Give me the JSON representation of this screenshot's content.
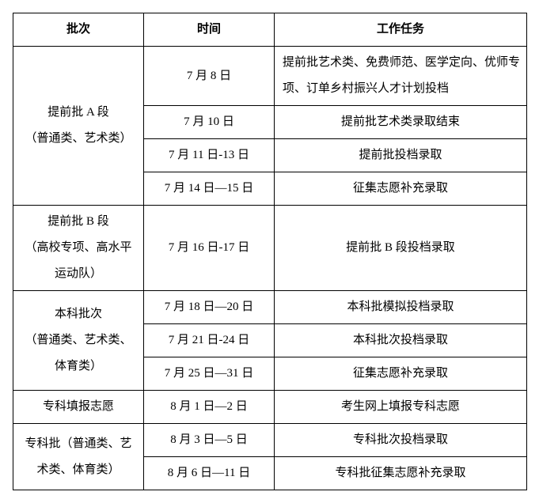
{
  "headers": {
    "batch": "批次",
    "time": "时间",
    "task": "工作任务"
  },
  "groups": [
    {
      "batch": "提前批 A 段\n（普通类、艺术类）",
      "rows": [
        {
          "time": "7 月 8 日",
          "task": "提前批艺术类、免费师范、医学定向、优师专项、订单乡村振兴人才计划投档",
          "multiline": true
        },
        {
          "time": "7 月 10 日",
          "task": "提前批艺术类录取结束"
        },
        {
          "time": "7 月 11 日-13 日",
          "task": "提前批投档录取"
        },
        {
          "time": "7 月 14 日—15 日",
          "task": "征集志愿补充录取"
        }
      ]
    },
    {
      "batch": "提前批 B 段\n（高校专项、高水平\n运动队）",
      "rows": [
        {
          "time": "7 月 16 日-17 日",
          "task": "提前批 B 段投档录取"
        }
      ]
    },
    {
      "batch": "本科批次\n（普通类、艺术类、\n体育类）",
      "rows": [
        {
          "time": "7 月 18 日—20 日",
          "task": "本科批模拟投档录取"
        },
        {
          "time": "7 月 21 日-24 日",
          "task": "本科批次投档录取"
        },
        {
          "time": "7 月 25 日—31 日",
          "task": "征集志愿补充录取"
        }
      ]
    },
    {
      "batch": "专科填报志愿",
      "rows": [
        {
          "time": "8 月 1 日—2 日",
          "task": "考生网上填报专科志愿"
        }
      ]
    },
    {
      "batch": "专科批（普通类、艺\n术类、体育类）",
      "rows": [
        {
          "time": "8 月 3 日—5 日",
          "task": "专科批次投档录取"
        },
        {
          "time": "8 月 6 日—11 日",
          "task": "专科批征集志愿补充录取"
        }
      ]
    }
  ]
}
